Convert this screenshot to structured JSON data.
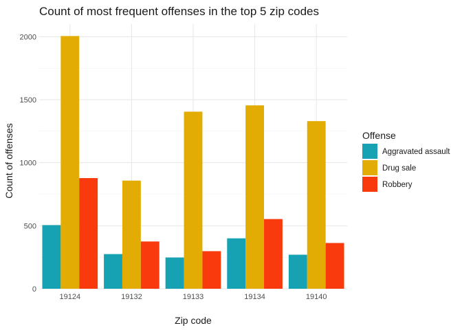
{
  "chart_data": {
    "type": "bar",
    "title": "Count of most frequent offenses in the top 5 zip codes",
    "xlabel": "Zip code",
    "ylabel": "Count of offenses",
    "categories": [
      "19124",
      "19132",
      "19133",
      "19134",
      "19140"
    ],
    "series": [
      {
        "name": "Aggravated assault",
        "color": "#17A2B3",
        "values": [
          505,
          275,
          248,
          400,
          270
        ]
      },
      {
        "name": "Drug sale",
        "color": "#E2AC05",
        "values": [
          2005,
          858,
          1405,
          1455,
          1330
        ]
      },
      {
        "name": "Robbery",
        "color": "#F93A0C",
        "values": [
          878,
          375,
          298,
          553,
          363
        ]
      }
    ],
    "ylim": [
      0,
      2100
    ],
    "yticks": [
      0,
      500,
      1000,
      1500,
      2000
    ],
    "legend": {
      "title": "Offense",
      "position": "right"
    },
    "grid": true
  }
}
